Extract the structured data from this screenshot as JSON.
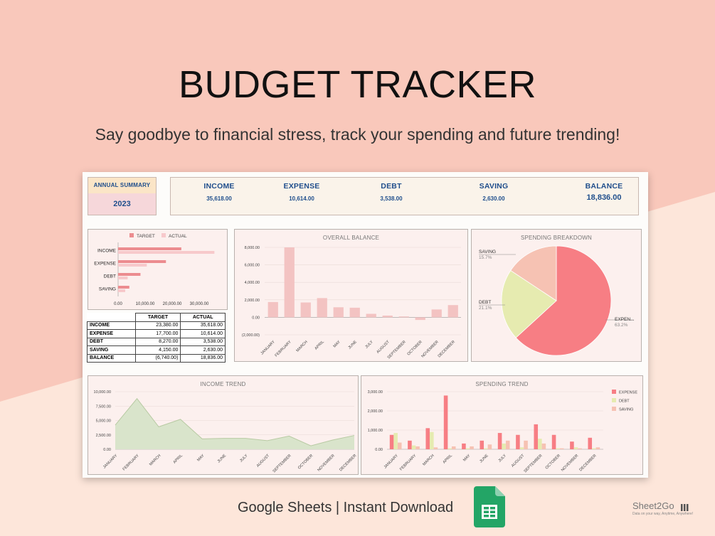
{
  "hero": {
    "title": "BUDGET TRACKER",
    "subtitle": "Say goodbye to financial stress, track your spending and future trending!"
  },
  "annual_summary": {
    "label": "ANNUAL SUMMARY",
    "year": "2023"
  },
  "summary": [
    {
      "label": "INCOME",
      "value": "35,618.00"
    },
    {
      "label": "EXPENSE",
      "value": "10,614.00"
    },
    {
      "label": "DEBT",
      "value": "3,538.00"
    },
    {
      "label": "SAVING",
      "value": "2,630.00"
    },
    {
      "label": "BALANCE",
      "value": "18,836.00"
    }
  ],
  "table": {
    "headers": [
      "",
      "TARGET",
      "ACTUAL"
    ],
    "rows": [
      [
        "INCOME",
        "23,380.00",
        "35,618.00"
      ],
      [
        "EXPENSE",
        "17,700.00",
        "10,614.00"
      ],
      [
        "DEBT",
        "8,270.00",
        "3,538.00"
      ],
      [
        "SAVING",
        "4,150.00",
        "2,630.00"
      ],
      [
        "BALANCE",
        "(6,740.00)",
        "18,836.00"
      ]
    ]
  },
  "footer": {
    "text": "Google Sheets | Instant Download",
    "brand": "Sheet2Go",
    "brand_tagline": "Data on your way, Anytime, Anywhere!"
  },
  "colors": {
    "bg_pink": "#f9c8bb",
    "bg_light": "#fde6da",
    "target": "#ec8c8f",
    "actual": "#f7c9cb",
    "balance_bar": "#f3c3c2",
    "expense": "#f77e84",
    "debt": "#e6ebb0",
    "saving": "#f6c2b3",
    "income_area": "#d9e4cb",
    "income_line": "#b8caa3",
    "title_blue": "#1f4e8c"
  },
  "chart_data": [
    {
      "type": "bar",
      "orientation": "horizontal",
      "categories": [
        "INCOME",
        "EXPENSE",
        "DEBT",
        "SAVING"
      ],
      "series": [
        {
          "name": "TARGET",
          "values": [
            23380,
            17700,
            8270,
            4150
          ]
        },
        {
          "name": "ACTUAL",
          "values": [
            35618,
            10614,
            3538,
            2630
          ]
        }
      ],
      "xticks": [
        "0.00",
        "10,000.00",
        "20,000.00",
        "30,000.00"
      ],
      "xlim": [
        0,
        35000
      ],
      "legend": "top"
    },
    {
      "type": "bar",
      "title": "OVERALL BALANCE",
      "categories": [
        "JANUARY",
        "FEBRUARY",
        "MARCH",
        "APRIL",
        "MAY",
        "JUNE",
        "JULY",
        "AUGUST",
        "SEPTEMBER",
        "OCTOBER",
        "NOVEMBER",
        "DECEMBER"
      ],
      "values": [
        1750,
        8000,
        1700,
        2200,
        1150,
        1100,
        400,
        200,
        100,
        -300,
        900,
        1400
      ],
      "yticks": [
        "(2,000.00)",
        "0.00",
        "2,000.00",
        "4,000.00",
        "6,000.00",
        "8,000.00"
      ],
      "ylim": [
        -2000,
        8000
      ]
    },
    {
      "type": "pie",
      "title": "SPENDING BREAKDOWN",
      "slices": [
        {
          "name": "EXPEN...",
          "label": "63.2%",
          "value": 63.2
        },
        {
          "name": "DEBT",
          "label": "21.1%",
          "value": 21.1
        },
        {
          "name": "SAVING",
          "label": "15.7%",
          "value": 15.7
        }
      ]
    },
    {
      "type": "area",
      "title": "INCOME TREND",
      "categories": [
        "JANUARY",
        "FEBRUARY",
        "MARCH",
        "APRIL",
        "MAY",
        "JUNE",
        "JULY",
        "AUGUST",
        "SEPTEMBER",
        "OCTOBER",
        "NOVEMBER",
        "DECEMBER"
      ],
      "values": [
        4200,
        8800,
        3900,
        5200,
        1800,
        1900,
        1900,
        1500,
        2300,
        600,
        1600,
        2400
      ],
      "yticks": [
        "0.00",
        "2,500.00",
        "5,000.00",
        "7,500.00",
        "10,000.00"
      ],
      "ylim": [
        0,
        10000
      ]
    },
    {
      "type": "bar",
      "title": "SPENDING TREND",
      "categories": [
        "JANUARY",
        "FEBRUARY",
        "MARCH",
        "APRIL",
        "MAY",
        "JUNE",
        "JULY",
        "AUGUST",
        "SEPTEMBER",
        "OCTOBER",
        "NOVEMBER",
        "DECEMBER"
      ],
      "series": [
        {
          "name": "EXPENSE",
          "values": [
            750,
            450,
            1100,
            2800,
            300,
            450,
            850,
            750,
            1300,
            750,
            400,
            600
          ]
        },
        {
          "name": "DEBT",
          "values": [
            850,
            200,
            900,
            50,
            50,
            50,
            300,
            100,
            550,
            50,
            100,
            50
          ]
        },
        {
          "name": "SAVING",
          "values": [
            350,
            150,
            100,
            150,
            150,
            250,
            450,
            450,
            300,
            50,
            50,
            100
          ]
        }
      ],
      "yticks": [
        "0.00",
        "1,000.00",
        "2,000.00",
        "3,000.00"
      ],
      "ylim": [
        0,
        3000
      ],
      "legend": "right"
    }
  ]
}
